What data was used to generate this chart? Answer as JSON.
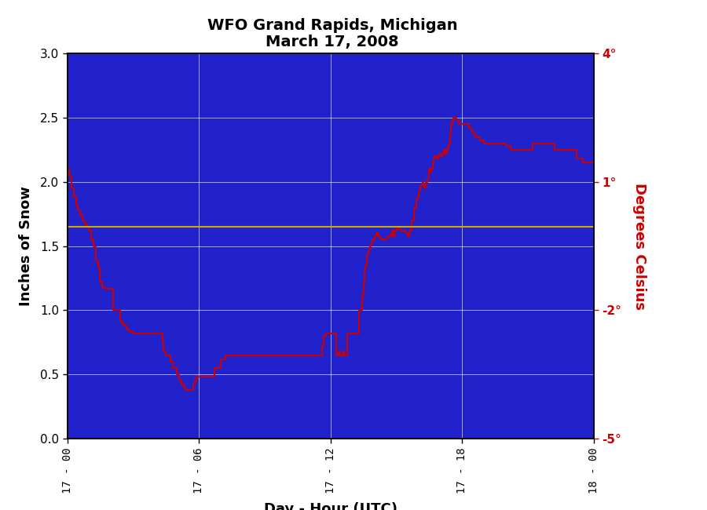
{
  "title_line1": "WFO Grand Rapids, Michigan",
  "title_line2": "March 17, 2008",
  "xlabel": "Day - Hour (UTC)",
  "ylabel_left": "Inches of Snow",
  "ylabel_right": "Degrees Celsius",
  "bg_color": "#2222CC",
  "outer_bg_color": "#FFFFFF",
  "border_color": "#3333EE",
  "line_color": "#CC0000",
  "hline_color": "#CCAA00",
  "hline_y": 1.65,
  "grid_color": "#FFFFFF",
  "ylim_left": [
    0.0,
    3.0
  ],
  "ylim_right": [
    -5.0,
    4.0
  ],
  "yticks_left": [
    0.0,
    0.5,
    1.0,
    1.5,
    2.0,
    2.5,
    3.0
  ],
  "yticks_right_vals": [
    4,
    1,
    -2,
    -5
  ],
  "yticks_right_labels": [
    "4°",
    "1°",
    "-2°",
    "-5°"
  ],
  "xtick_positions": [
    0,
    6,
    12,
    18,
    24
  ],
  "xtick_labels": [
    "17 - 00",
    "17 - 06",
    "17 - 12",
    "17 - 18",
    "18 - 00"
  ],
  "snow_data": [
    [
      0.0,
      2.1
    ],
    [
      0.1,
      2.05
    ],
    [
      0.2,
      1.95
    ],
    [
      0.3,
      1.88
    ],
    [
      0.4,
      1.82
    ],
    [
      0.5,
      1.78
    ],
    [
      0.6,
      1.74
    ],
    [
      0.7,
      1.7
    ],
    [
      0.8,
      1.67
    ],
    [
      0.9,
      1.65
    ],
    [
      1.0,
      1.62
    ],
    [
      1.1,
      1.55
    ],
    [
      1.2,
      1.5
    ],
    [
      1.3,
      1.38
    ],
    [
      1.4,
      1.33
    ],
    [
      1.5,
      1.22
    ],
    [
      1.6,
      1.18
    ],
    [
      1.7,
      1.17
    ],
    [
      1.8,
      1.17
    ],
    [
      1.9,
      1.17
    ],
    [
      2.0,
      1.17
    ],
    [
      2.1,
      1.0
    ],
    [
      2.2,
      1.0
    ],
    [
      2.3,
      1.0
    ],
    [
      2.4,
      0.92
    ],
    [
      2.5,
      0.9
    ],
    [
      2.6,
      0.88
    ],
    [
      2.7,
      0.85
    ],
    [
      2.8,
      0.84
    ],
    [
      2.9,
      0.83
    ],
    [
      3.0,
      0.82
    ],
    [
      3.2,
      0.82
    ],
    [
      3.5,
      0.82
    ],
    [
      3.8,
      0.82
    ],
    [
      4.0,
      0.82
    ],
    [
      4.2,
      0.82
    ],
    [
      4.3,
      0.82
    ],
    [
      4.35,
      0.75
    ],
    [
      4.4,
      0.68
    ],
    [
      4.5,
      0.65
    ],
    [
      4.6,
      0.65
    ],
    [
      4.7,
      0.6
    ],
    [
      4.8,
      0.55
    ],
    [
      4.9,
      0.55
    ],
    [
      5.0,
      0.5
    ],
    [
      5.1,
      0.45
    ],
    [
      5.2,
      0.42
    ],
    [
      5.3,
      0.4
    ],
    [
      5.4,
      0.38
    ],
    [
      5.5,
      0.38
    ],
    [
      5.6,
      0.38
    ],
    [
      5.7,
      0.38
    ],
    [
      5.75,
      0.42
    ],
    [
      5.8,
      0.45
    ],
    [
      5.9,
      0.48
    ],
    [
      6.0,
      0.48
    ],
    [
      6.2,
      0.48
    ],
    [
      6.5,
      0.48
    ],
    [
      6.7,
      0.55
    ],
    [
      7.0,
      0.62
    ],
    [
      7.2,
      0.65
    ],
    [
      7.5,
      0.65
    ],
    [
      7.8,
      0.65
    ],
    [
      8.0,
      0.65
    ],
    [
      8.3,
      0.65
    ],
    [
      8.5,
      0.65
    ],
    [
      8.7,
      0.65
    ],
    [
      9.0,
      0.65
    ],
    [
      9.3,
      0.65
    ],
    [
      9.5,
      0.65
    ],
    [
      9.7,
      0.65
    ],
    [
      10.0,
      0.65
    ],
    [
      10.3,
      0.65
    ],
    [
      10.5,
      0.65
    ],
    [
      10.7,
      0.65
    ],
    [
      11.0,
      0.65
    ],
    [
      11.3,
      0.65
    ],
    [
      11.5,
      0.65
    ],
    [
      11.6,
      0.72
    ],
    [
      11.7,
      0.8
    ],
    [
      11.8,
      0.82
    ],
    [
      12.0,
      0.82
    ],
    [
      12.1,
      0.82
    ],
    [
      12.2,
      0.82
    ],
    [
      12.25,
      0.65
    ],
    [
      12.3,
      0.65
    ],
    [
      12.35,
      0.68
    ],
    [
      12.4,
      0.65
    ],
    [
      12.5,
      0.65
    ],
    [
      12.55,
      0.68
    ],
    [
      12.6,
      0.65
    ],
    [
      12.7,
      0.65
    ],
    [
      12.75,
      0.82
    ],
    [
      12.8,
      0.82
    ],
    [
      13.0,
      0.82
    ],
    [
      13.1,
      0.82
    ],
    [
      13.2,
      0.82
    ],
    [
      13.3,
      1.0
    ],
    [
      13.4,
      1.0
    ],
    [
      13.45,
      1.12
    ],
    [
      13.5,
      1.22
    ],
    [
      13.55,
      1.3
    ],
    [
      13.6,
      1.35
    ],
    [
      13.65,
      1.42
    ],
    [
      13.7,
      1.45
    ],
    [
      13.75,
      1.48
    ],
    [
      13.8,
      1.5
    ],
    [
      13.85,
      1.52
    ],
    [
      13.9,
      1.55
    ],
    [
      14.0,
      1.58
    ],
    [
      14.1,
      1.6
    ],
    [
      14.15,
      1.58
    ],
    [
      14.2,
      1.58
    ],
    [
      14.25,
      1.55
    ],
    [
      14.3,
      1.55
    ],
    [
      14.4,
      1.55
    ],
    [
      14.5,
      1.55
    ],
    [
      14.6,
      1.58
    ],
    [
      14.7,
      1.58
    ],
    [
      14.75,
      1.6
    ],
    [
      14.8,
      1.62
    ],
    [
      14.85,
      1.58
    ],
    [
      14.9,
      1.62
    ],
    [
      15.0,
      1.65
    ],
    [
      15.1,
      1.63
    ],
    [
      15.2,
      1.62
    ],
    [
      15.3,
      1.62
    ],
    [
      15.4,
      1.6
    ],
    [
      15.5,
      1.58
    ],
    [
      15.6,
      1.62
    ],
    [
      15.7,
      1.7
    ],
    [
      15.8,
      1.8
    ],
    [
      15.9,
      1.87
    ],
    [
      16.0,
      1.93
    ],
    [
      16.1,
      1.97
    ],
    [
      16.2,
      2.0
    ],
    [
      16.25,
      1.97
    ],
    [
      16.3,
      1.95
    ],
    [
      16.35,
      2.0
    ],
    [
      16.4,
      2.02
    ],
    [
      16.5,
      2.1
    ],
    [
      16.55,
      2.08
    ],
    [
      16.6,
      2.1
    ],
    [
      16.65,
      2.15
    ],
    [
      16.7,
      2.18
    ],
    [
      16.75,
      2.2
    ],
    [
      16.8,
      2.2
    ],
    [
      16.85,
      2.18
    ],
    [
      16.9,
      2.2
    ],
    [
      16.95,
      2.22
    ],
    [
      17.0,
      2.22
    ],
    [
      17.05,
      2.2
    ],
    [
      17.1,
      2.22
    ],
    [
      17.15,
      2.25
    ],
    [
      17.2,
      2.25
    ],
    [
      17.25,
      2.22
    ],
    [
      17.3,
      2.25
    ],
    [
      17.35,
      2.28
    ],
    [
      17.4,
      2.3
    ],
    [
      17.45,
      2.38
    ],
    [
      17.5,
      2.45
    ],
    [
      17.55,
      2.48
    ],
    [
      17.6,
      2.5
    ],
    [
      17.65,
      2.5
    ],
    [
      17.7,
      2.5
    ],
    [
      17.75,
      2.48
    ],
    [
      17.8,
      2.48
    ],
    [
      17.85,
      2.45
    ],
    [
      17.9,
      2.45
    ],
    [
      17.95,
      2.45
    ],
    [
      18.0,
      2.45
    ],
    [
      18.1,
      2.45
    ],
    [
      18.2,
      2.45
    ],
    [
      18.3,
      2.42
    ],
    [
      18.4,
      2.4
    ],
    [
      18.5,
      2.38
    ],
    [
      18.6,
      2.35
    ],
    [
      18.7,
      2.35
    ],
    [
      18.8,
      2.32
    ],
    [
      19.0,
      2.3
    ],
    [
      19.2,
      2.3
    ],
    [
      19.5,
      2.3
    ],
    [
      19.7,
      2.3
    ],
    [
      20.0,
      2.28
    ],
    [
      20.2,
      2.25
    ],
    [
      20.5,
      2.25
    ],
    [
      20.7,
      2.25
    ],
    [
      21.0,
      2.25
    ],
    [
      21.2,
      2.3
    ],
    [
      21.5,
      2.3
    ],
    [
      21.7,
      2.3
    ],
    [
      22.0,
      2.3
    ],
    [
      22.2,
      2.25
    ],
    [
      22.5,
      2.25
    ],
    [
      22.7,
      2.25
    ],
    [
      23.0,
      2.25
    ],
    [
      23.2,
      2.18
    ],
    [
      23.5,
      2.15
    ],
    [
      23.7,
      2.15
    ],
    [
      24.0,
      2.15
    ]
  ]
}
